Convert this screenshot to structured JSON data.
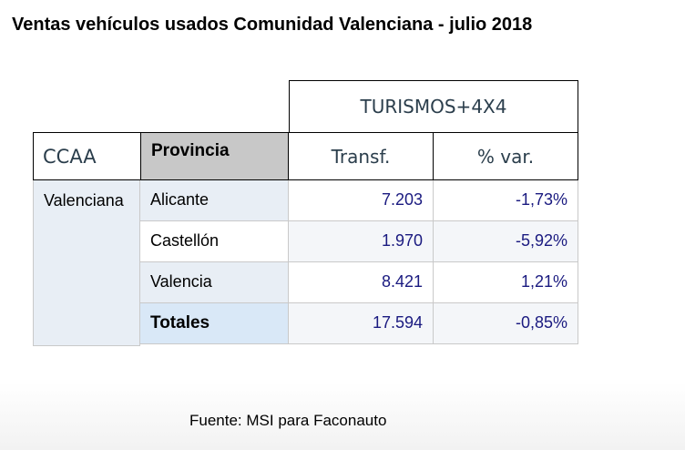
{
  "title": "Ventas vehículos usados Comunidad Valenciana - julio 2018",
  "table": {
    "group_header": "TURISMOS+4X4",
    "headers": {
      "ccaa": "CCAA",
      "provincia": "Provincia",
      "transf": "Transf.",
      "var": "% var."
    },
    "ccaa_value": "Valenciana",
    "rows": [
      {
        "provincia": "Alicante",
        "transf": "7.203",
        "var": "-1,73%"
      },
      {
        "provincia": "Castellón",
        "transf": "1.970",
        "var": "-5,92%"
      },
      {
        "provincia": "Valencia",
        "transf": "8.421",
        "var": "1,21%"
      },
      {
        "provincia": "Totales",
        "transf": "17.594",
        "var": "-0,85%"
      }
    ]
  },
  "source": "Fuente: MSI para Faconauto",
  "colors": {
    "header_gray": "#c8c8c8",
    "row_blue": "#e8eef5",
    "total_blue": "#d9e8f7",
    "number_blue": "#1a1a80"
  }
}
